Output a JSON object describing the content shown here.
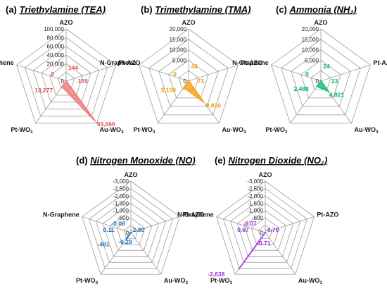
{
  "chart_data": [
    {
      "letter": "(a)",
      "title": "Triethylamine (TEA)",
      "type": "radar",
      "axes": [
        "AZO",
        "Pt-AZO",
        "Au-WO₃",
        "Pt-WO₃",
        "N-Graphene"
      ],
      "ticks": [
        "100,000",
        "80,000",
        "60,000",
        "40,000",
        "20,000"
      ],
      "range": [
        0,
        100000
      ],
      "values": [
        144,
        159,
        93666,
        13277,
        0
      ],
      "labels": [
        "144",
        "159",
        "93,666",
        "13,277",
        "0"
      ],
      "color": "#f08080",
      "label_color": "#e05252"
    },
    {
      "letter": "(b)",
      "title": "Trimethylamine (TMA)",
      "type": "radar",
      "axes": [
        "AZO",
        "Pt-AZO",
        "Au-WO₃",
        "Pt-WO₃",
        "N-Graphene"
      ],
      "ticks": [
        "20,000",
        "15,000",
        "10,000",
        "5,000"
      ],
      "range": [
        0,
        20000
      ],
      "values": [
        44,
        73,
        9810,
        3100,
        0
      ],
      "labels": [
        "44",
        "73",
        "9,810",
        "3,100",
        "0"
      ],
      "color": "#f5a623",
      "label_color": "#f0a000"
    },
    {
      "letter": "(c)",
      "title": "Ammonia (NH₃)",
      "type": "radar",
      "axes": [
        "AZO",
        "Pt-AZO",
        "Au-WO₃",
        "Pt-WO₃",
        "N-Graphene"
      ],
      "ticks": [
        "20,000",
        "15,000",
        "10,000",
        "5,000"
      ],
      "range": [
        0,
        20000
      ],
      "values": [
        24,
        23,
        4821,
        2488,
        0
      ],
      "labels": [
        "24",
        "23",
        "4,821",
        "2,488",
        "0"
      ],
      "color": "#1fbf7a",
      "label_color": "#00b36b"
    },
    {
      "letter": "(d)",
      "title": "Nitrogen Monoxide (NO)",
      "type": "radar",
      "axes": [
        "AZO",
        "Pt-AZO",
        "Au-WO₃",
        "Pt-WO₃",
        "N-Graphene"
      ],
      "ticks": [
        "-3,000",
        "-2,500",
        "-2,000",
        "-1,500",
        "-1,000",
        "-500"
      ],
      "range": [
        0,
        -3000
      ],
      "values": [
        -0.06,
        -2.8,
        -0.29,
        -481,
        0.11
      ],
      "labels": [
        "-0.06",
        "-2.80",
        "-0.29",
        "-481",
        "0.11"
      ],
      "color": "#1f7ac9",
      "label_color": "#1f6fb8"
    },
    {
      "letter": "(e)",
      "title": "Nitrogen Dioxide (NO₂)",
      "type": "radar",
      "axes": [
        "AZO",
        "Pt-AZO",
        "Au-WO₃",
        "Pt-WO₃",
        "N-Graphene"
      ],
      "ticks": [
        "-3,000",
        "-2,500",
        "-2,000",
        "-1,500",
        "-1,000",
        "-500"
      ],
      "range": [
        0,
        -3000
      ],
      "values": [
        -0.07,
        -4.7,
        -0.71,
        -2638,
        0.67
      ],
      "labels": [
        "-0.07",
        "-4.70",
        "-0.71",
        "-2,638",
        "0.67"
      ],
      "color": "#b24fe0",
      "label_color": "#9b30d9"
    }
  ],
  "zero_label": "0"
}
